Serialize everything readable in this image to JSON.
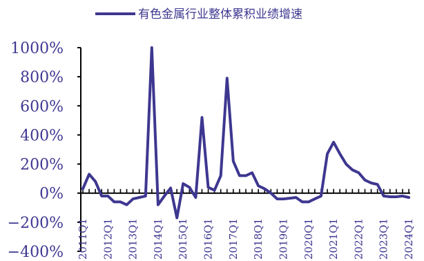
{
  "chart_data": {
    "type": "line",
    "legend": {
      "position": "top-center"
    },
    "grid": false,
    "xlabel": "",
    "ylabel": "",
    "ylim": [
      -400,
      1000
    ],
    "yticks": [
      1000,
      800,
      600,
      400,
      200,
      0,
      -200,
      -400
    ],
    "ytick_labels": [
      "1000%",
      "800%",
      "600%",
      "400%",
      "200%",
      "0%",
      "−200%",
      "−400%"
    ],
    "xtick_labels": [
      "2011Q1",
      "2012Q1",
      "2013Q1",
      "2014Q1",
      "2015Q1",
      "2016Q1",
      "2017Q1",
      "2018Q1",
      "2019Q1",
      "2020Q1",
      "2021Q1",
      "2022Q1",
      "2023Q1",
      "2024Q1"
    ],
    "x": [
      "2011Q1",
      "2011Q2",
      "2011Q3",
      "2011Q4",
      "2012Q1",
      "2012Q2",
      "2012Q3",
      "2012Q4",
      "2013Q1",
      "2013Q2",
      "2013Q3",
      "2013Q4",
      "2014Q1",
      "2014Q2",
      "2014Q3",
      "2014Q4",
      "2015Q1",
      "2015Q2",
      "2015Q3",
      "2015Q4",
      "2016Q1",
      "2016Q2",
      "2016Q3",
      "2016Q4",
      "2017Q1",
      "2017Q2",
      "2017Q3",
      "2017Q4",
      "2018Q1",
      "2018Q2",
      "2018Q3",
      "2018Q4",
      "2019Q1",
      "2019Q2",
      "2019Q3",
      "2019Q4",
      "2020Q1",
      "2020Q2",
      "2020Q3",
      "2020Q4",
      "2021Q1",
      "2021Q2",
      "2021Q3",
      "2021Q4",
      "2022Q1",
      "2022Q2",
      "2022Q3",
      "2022Q4",
      "2023Q1",
      "2023Q2",
      "2023Q3",
      "2023Q4",
      "2024Q1"
    ],
    "series": [
      {
        "name": "有色金属行业整体累积业绩增速",
        "color": "#3e3790",
        "values": [
          30,
          130,
          80,
          -20,
          -20,
          -60,
          -60,
          -80,
          -40,
          -30,
          -20,
          1000,
          -80,
          -20,
          35,
          -170,
          65,
          40,
          -30,
          520,
          40,
          20,
          120,
          790,
          220,
          120,
          120,
          140,
          50,
          30,
          0,
          -40,
          -40,
          -35,
          -30,
          -60,
          -60,
          -40,
          -20,
          270,
          350,
          270,
          200,
          160,
          140,
          90,
          70,
          60,
          -20,
          -25,
          -25,
          -20,
          -30
        ]
      }
    ]
  }
}
